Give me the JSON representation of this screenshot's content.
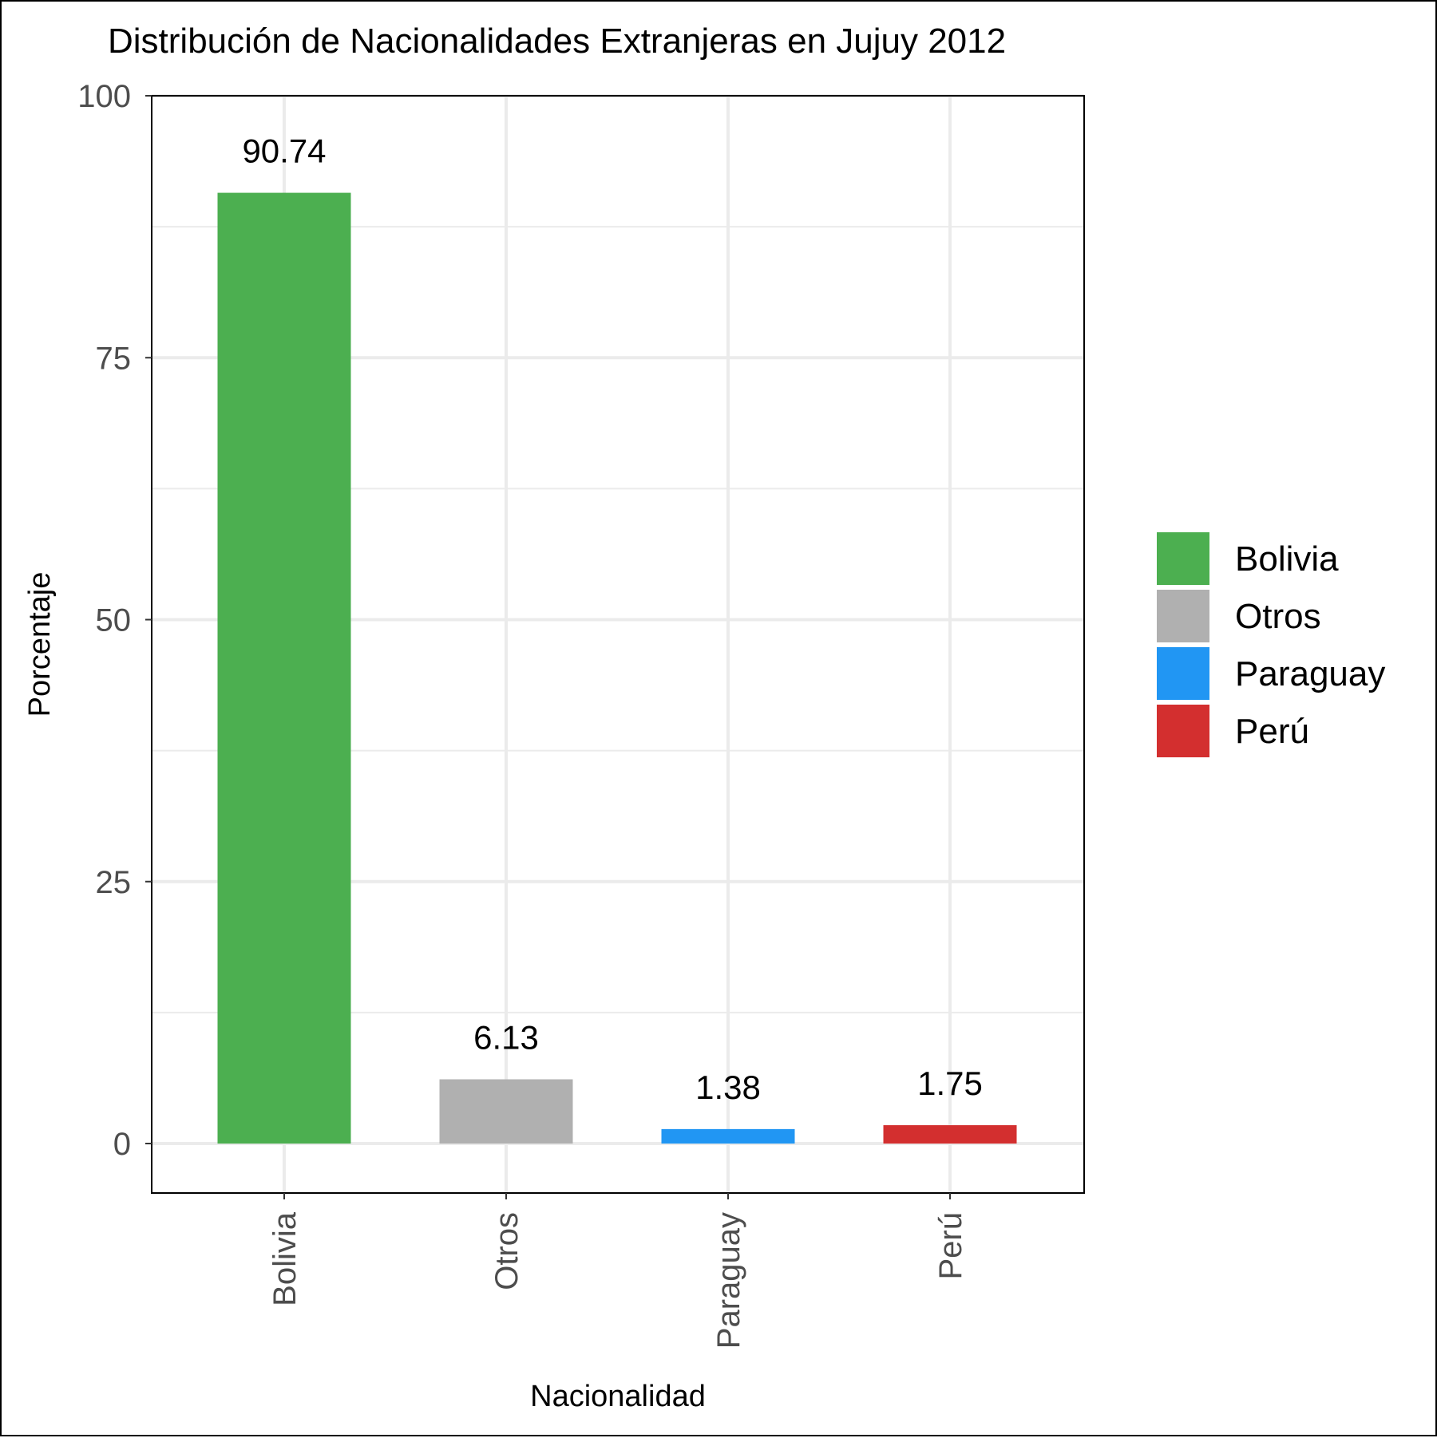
{
  "chart_data": {
    "type": "bar",
    "title": "Distribución de Nacionalidades Extranjeras en Jujuy 2012",
    "xlabel": "Nacionalidad",
    "ylabel": "Porcentaje",
    "categories": [
      "Bolivia",
      "Otros",
      "Paraguay",
      "Perú"
    ],
    "values": [
      90.74,
      6.13,
      1.38,
      1.75
    ],
    "value_labels": [
      "90.74",
      "6.13",
      "1.38",
      "1.75"
    ],
    "colors": [
      "#4caf50",
      "#b0b0b0",
      "#2196f3",
      "#d32f2f"
    ],
    "ylim": [
      -4.6,
      100
    ],
    "yticks": [
      0,
      25,
      50,
      75,
      100
    ],
    "ytick_labels": [
      "0",
      "25",
      "50",
      "75",
      "100"
    ],
    "grid": true,
    "legend": {
      "position": "right",
      "entries": [
        "Bolivia",
        "Otros",
        "Paraguay",
        "Perú"
      ]
    }
  }
}
